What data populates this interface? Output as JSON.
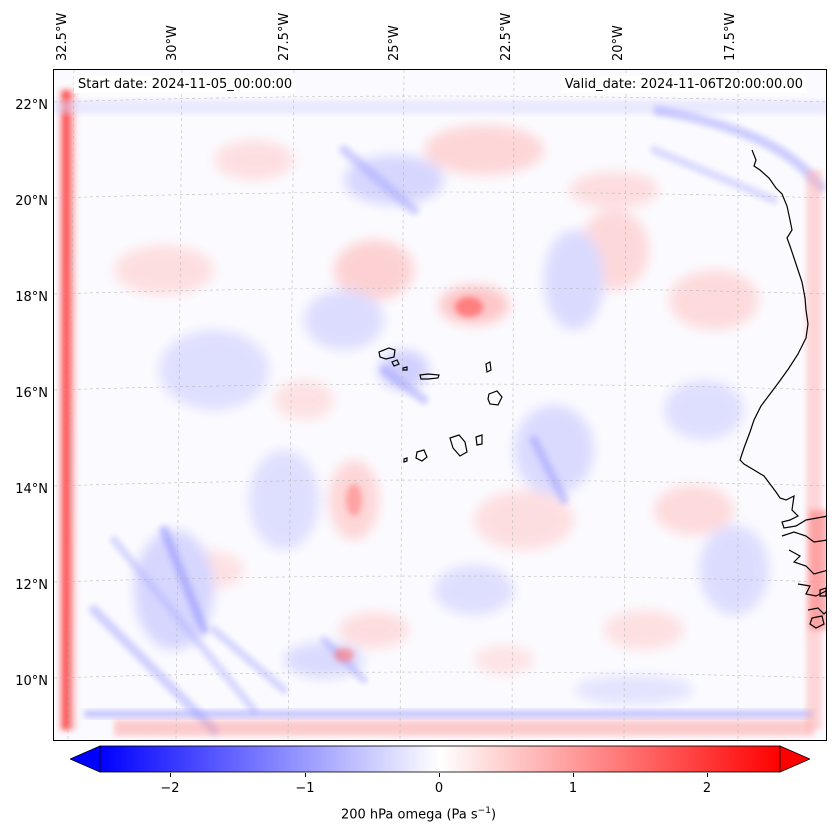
{
  "map": {
    "start_date": "Start date: 2024-11-05_00:00:00",
    "valid_date": "Valid_date: 2024-11-06T20:00:00.00",
    "lon_labels": [
      "32.5°W",
      "30°W",
      "27.5°W",
      "25°W",
      "22.5°W",
      "20°W",
      "17.5°W"
    ],
    "lat_labels": [
      "22°N",
      "20°N",
      "18°N",
      "16°N",
      "14°N",
      "12°N",
      "10°N"
    ],
    "islands": "Cape Verde islands",
    "coastline": "West African coast"
  },
  "colorbar": {
    "ticks": [
      "−2",
      "−1",
      "0",
      "1",
      "2"
    ],
    "label_text": "200 hPa omega (Pa s",
    "label_sup": "−1",
    "label_close": ")",
    "min": -2.7,
    "max": 2.7,
    "colors": {
      "negative": "#0000ff",
      "zero": "#ffffff",
      "positive": "#ff0000"
    }
  }
}
